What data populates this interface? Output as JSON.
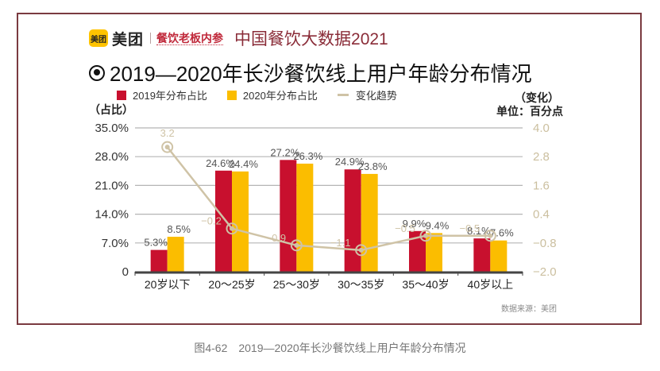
{
  "header": {
    "brand_logo_text": "美团",
    "brand_name": "美团",
    "partner_name": "餐饮老板内参",
    "report_title": "中国餐饮大数据2021"
  },
  "chart_title": "2019—2020年长沙餐饮线上用户年龄分布情况",
  "units": {
    "left": "（占比）",
    "right_line1": "（变化）",
    "right_line2": "单位：百分点"
  },
  "source": "数据来源：美团",
  "caption": "图4-62　2019—2020年长沙餐饮线上用户年龄分布情况",
  "colors": {
    "series_2019": "#c8102e",
    "series_2020": "#fbbd00",
    "trend": "#cfc3a6",
    "frame": "#7a3a40"
  },
  "chart_data": {
    "type": "bar",
    "title": "2019—2020年长沙餐饮线上用户年龄分布情况",
    "categories": [
      "20岁以下",
      "20～25岁",
      "25～30岁",
      "30～35岁",
      "35～40岁",
      "40岁以上"
    ],
    "series": [
      {
        "name": "2019年分布占比",
        "type": "bar",
        "axis": "left",
        "values": [
          5.3,
          24.6,
          27.2,
          24.9,
          9.9,
          8.1
        ],
        "labels": [
          "5.3%",
          "24.6%",
          "27.2%",
          "24.9%",
          "9.9%",
          "8.1%"
        ]
      },
      {
        "name": "2020年分布占比",
        "type": "bar",
        "axis": "left",
        "values": [
          8.5,
          24.4,
          26.3,
          23.8,
          9.4,
          7.6
        ],
        "labels": [
          "8.5%",
          "24.4%",
          "26.3%",
          "23.8%",
          "9.4%",
          "7.6%"
        ]
      },
      {
        "name": "变化趋势",
        "type": "line",
        "axis": "right",
        "values": [
          3.2,
          -0.2,
          -0.9,
          -1.1,
          -0.5,
          -0.5
        ],
        "labels": [
          "3.2",
          "−0.2",
          "−0.9",
          "−1.1",
          "−0.5",
          "−0.5"
        ]
      }
    ],
    "ylabel": "（占比）",
    "ylim": [
      0,
      35
    ],
    "yticks": [
      "0",
      "7.0%",
      "14.0%",
      "21.0%",
      "28.0%",
      "35.0%"
    ],
    "ytick_values": [
      0,
      7,
      14,
      21,
      28,
      35
    ],
    "y2label": "（变化）单位：百分点",
    "y2lim": [
      -2.0,
      4.0
    ],
    "y2ticks": [
      "−2.0",
      "−0.8",
      "0.4",
      "1.6",
      "2.8",
      "4.0"
    ],
    "y2tick_values": [
      -2.0,
      -0.8,
      0.4,
      1.6,
      2.8,
      4.0
    ],
    "grid": true,
    "legend": "top"
  }
}
